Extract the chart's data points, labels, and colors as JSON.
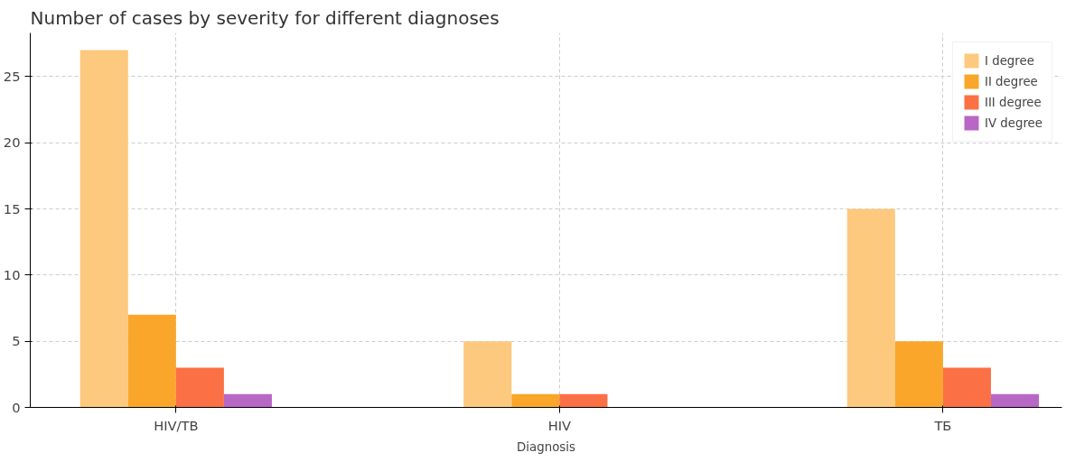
{
  "chart_data": {
    "type": "bar",
    "title": "Number of cases by severity for different diagnoses",
    "xlabel": "Diagnosis",
    "categories": [
      "HIV/TB",
      "HIV",
      "ТБ"
    ],
    "series": [
      {
        "name": "I degree",
        "color": "#fdc97e",
        "values": [
          27,
          5,
          15
        ]
      },
      {
        "name": "II degree",
        "color": "#f9a62b",
        "values": [
          7,
          1,
          5
        ]
      },
      {
        "name": "III degree",
        "color": "#fc7045",
        "values": [
          3,
          1,
          3
        ]
      },
      {
        "name": "IV degree",
        "color": "#b867c6",
        "values": [
          1,
          0,
          1
        ]
      }
    ],
    "ylim": [
      0,
      28.3
    ],
    "yticks": [
      0,
      5,
      10,
      15,
      20,
      25
    ],
    "grid": true,
    "legend": "top right"
  }
}
